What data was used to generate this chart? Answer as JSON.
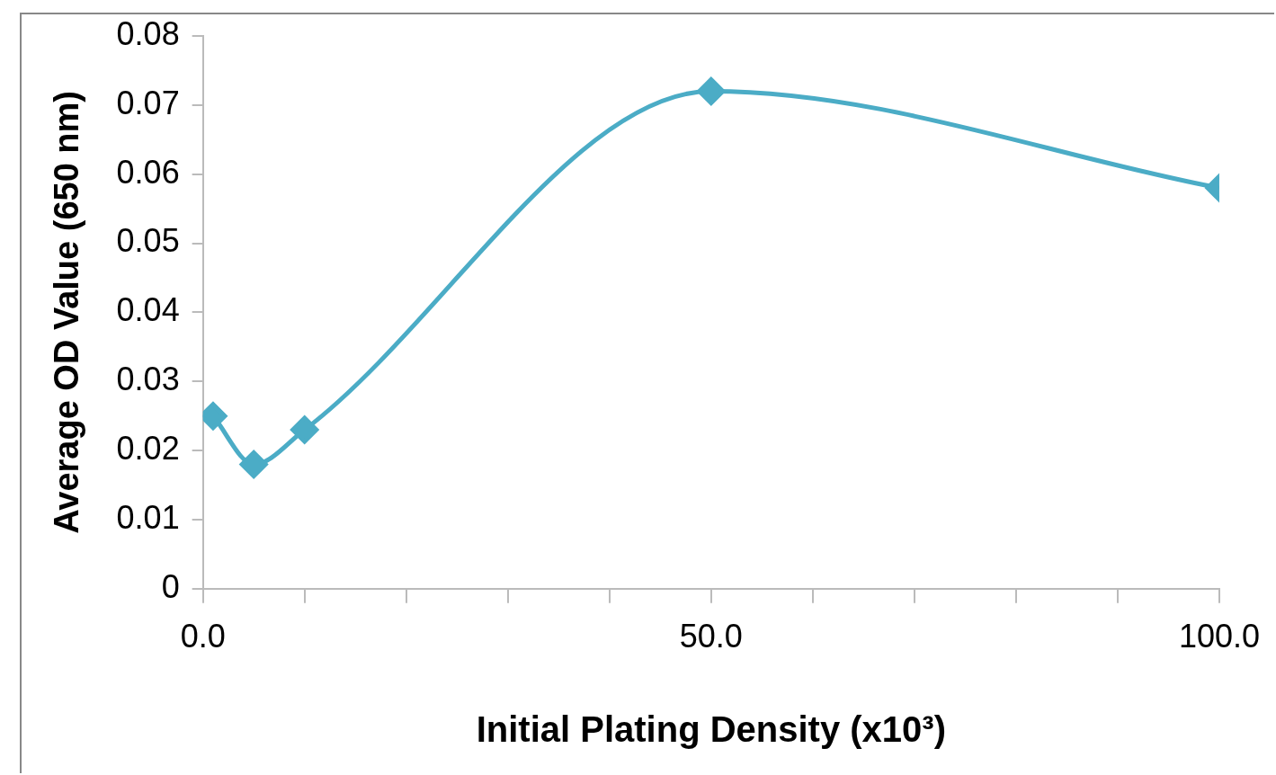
{
  "chart_data": {
    "type": "line",
    "xlabel": "Initial Plating Density (x10³)",
    "ylabel": "Average OD Value (650 nm)",
    "x": [
      1,
      5,
      10,
      50,
      100
    ],
    "series": [
      {
        "color": "#4bacc6",
        "values": [
          0.025,
          0.018,
          0.023,
          0.072,
          0.058
        ]
      }
    ],
    "xlim": [
      0,
      100
    ],
    "xticks": [
      {
        "value": 0,
        "label": "0.0"
      },
      {
        "value": 10,
        "label": null
      },
      {
        "value": 20,
        "label": null
      },
      {
        "value": 30,
        "label": null
      },
      {
        "value": 40,
        "label": null
      },
      {
        "value": 50,
        "label": "50.0"
      },
      {
        "value": 60,
        "label": null
      },
      {
        "value": 70,
        "label": null
      },
      {
        "value": 80,
        "label": null
      },
      {
        "value": 90,
        "label": null
      },
      {
        "value": 100,
        "label": "100.0"
      }
    ],
    "ylim": [
      0,
      0.08
    ],
    "yticks": [
      0,
      0.01,
      0.02,
      0.03,
      0.04,
      0.05,
      0.06,
      0.07,
      0.08
    ],
    "grid": false,
    "legend": false,
    "marker": "diamond",
    "line_style": "solid"
  }
}
